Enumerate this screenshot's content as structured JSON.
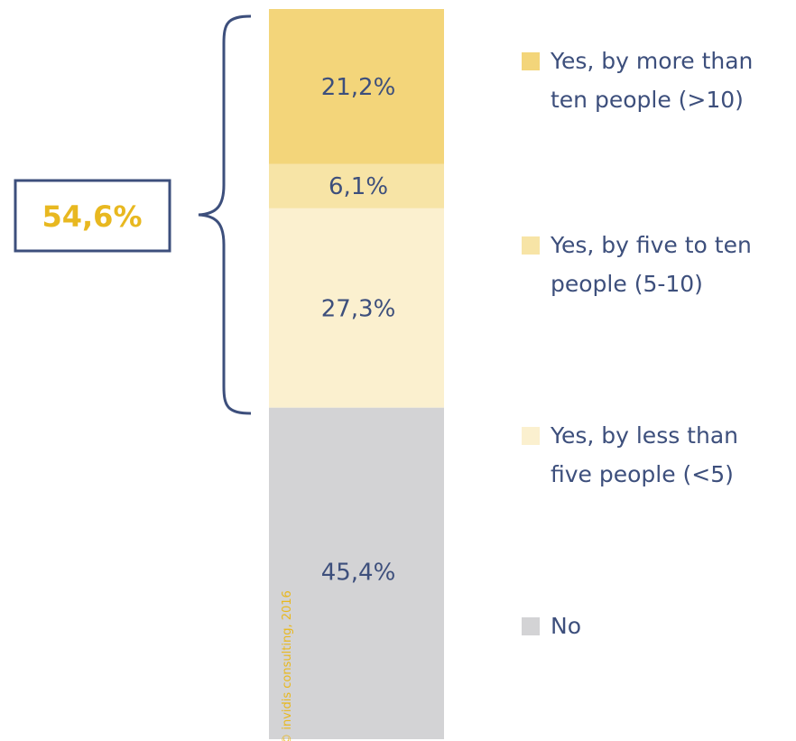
{
  "chart_data": {
    "type": "bar",
    "stacked": true,
    "series": [
      {
        "name": "Yes, by more than ten people (>10)",
        "value": 21.2,
        "label": "21,2%",
        "legend_lines": [
          "Yes, by more than",
          "ten people (>10)"
        ],
        "color": "#f3d57a"
      },
      {
        "name": "Yes, by five to ten people (5-10)",
        "value": 6.1,
        "label": "6,1%",
        "legend_lines": [
          "Yes, by five to ten",
          "people (5-10)"
        ],
        "color": "#f7e4a6"
      },
      {
        "name": "Yes, by less than five people (<5)",
        "value": 27.3,
        "label": "27,3%",
        "legend_lines": [
          "Yes, by less than",
          "five people (<5)"
        ],
        "color": "#fbf0cf"
      },
      {
        "name": "No",
        "value": 45.4,
        "label": "45,4%",
        "legend_lines": [
          "No"
        ],
        "color": "#d3d3d5"
      }
    ],
    "callout": {
      "label": "54,6%",
      "value": 54.6
    },
    "ylim": [
      0,
      100
    ]
  },
  "copyright": "© invidis consulting, 2016",
  "colors": {
    "text": "#3d4f7c",
    "accent": "#e8b820",
    "bracket": "#3d4f7c"
  }
}
